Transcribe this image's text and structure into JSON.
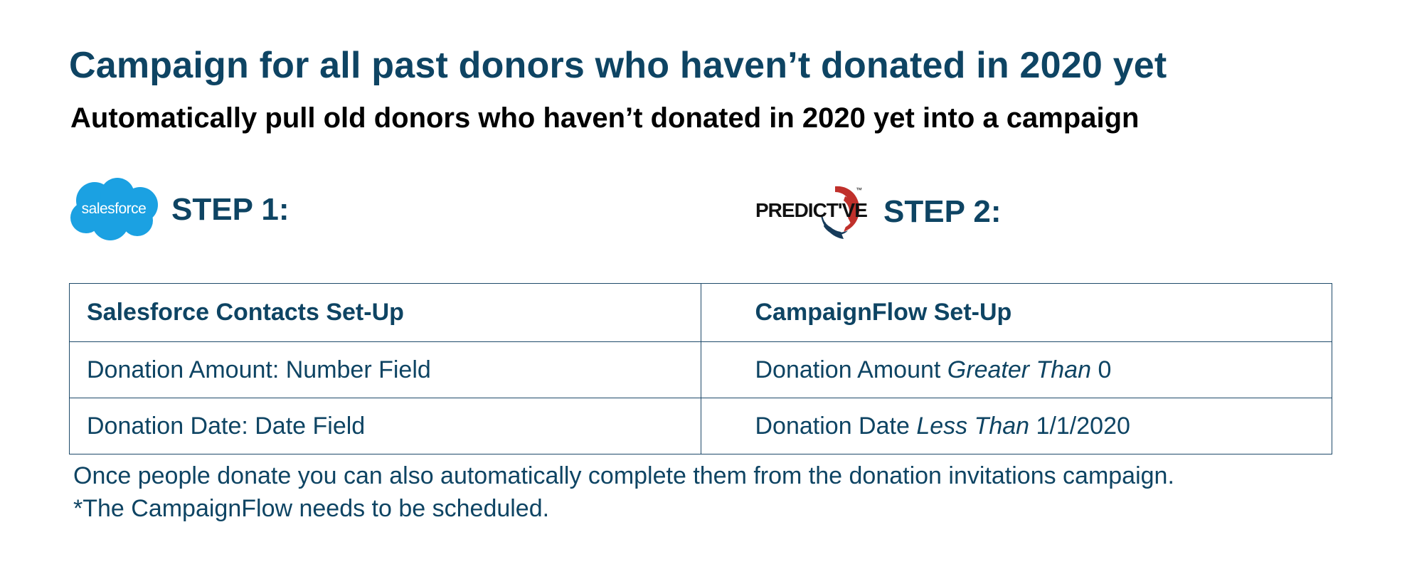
{
  "title": "Campaign for all past donors who haven’t donated in 2020 yet",
  "subtitle": "Automatically pull old donors who haven’t donated in 2020 yet into a campaign",
  "colors": {
    "primary": "#0e4463",
    "salesforce_blue": "#1ba1e2",
    "predictive_red": "#c0302b"
  },
  "step1": {
    "logo_text": "salesforce",
    "logo_icon": "salesforce-cloud-logo",
    "label": "STEP 1:"
  },
  "step2": {
    "logo_text": "PREDICT'VE",
    "logo_tm": "™",
    "logo_icon": "predictive-response-logo",
    "label": "STEP 2:"
  },
  "table": {
    "headers": [
      "Salesforce Contacts Set-Up",
      "CampaignFlow Set-Up"
    ],
    "rows": [
      {
        "left": "Donation Amount: Number Field",
        "right_field": "Donation Amount",
        "right_operator": "Greater Than",
        "right_value": "0"
      },
      {
        "left": "Donation Date: Date Field",
        "right_field": "Donation Date",
        "right_operator": "Less Than",
        "right_value": "1/1/2020"
      }
    ]
  },
  "notes": [
    "Once people donate you can also automatically complete them from the donation invitations campaign.",
    "*The CampaignFlow needs to be scheduled."
  ]
}
